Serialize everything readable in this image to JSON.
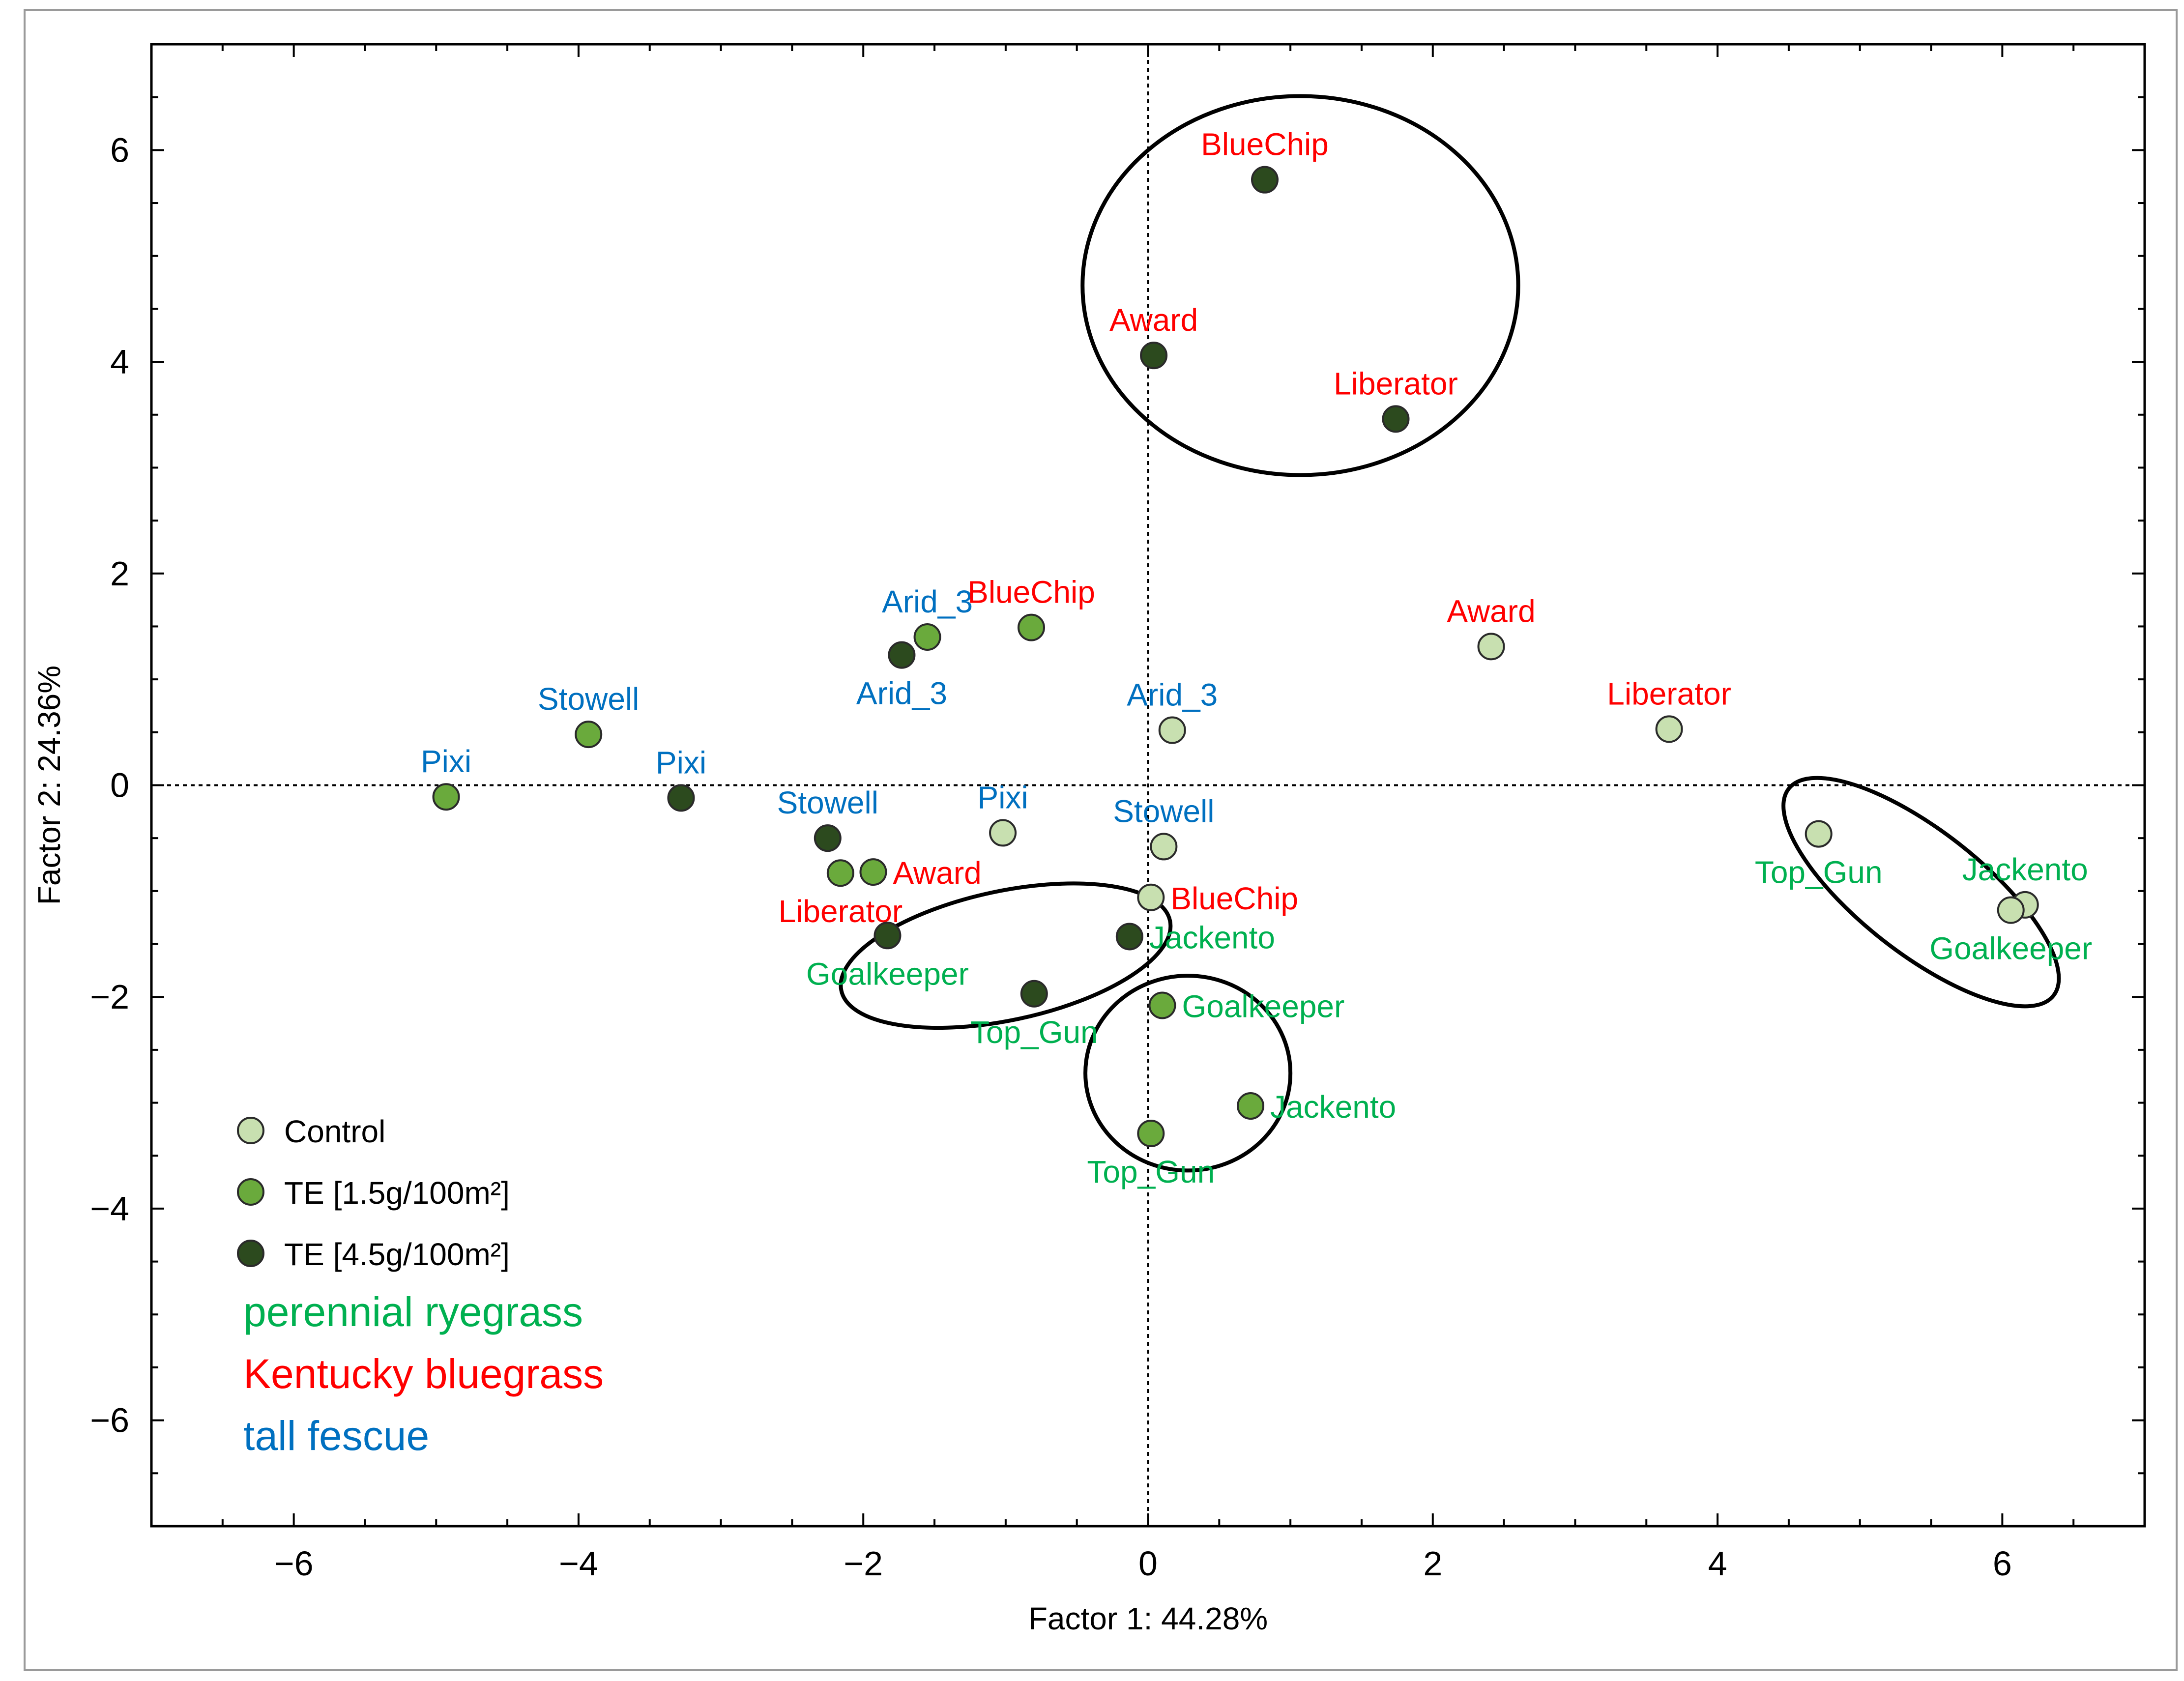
{
  "chart_data": {
    "type": "scatter",
    "xlabel": "Factor 1: 44.28%",
    "ylabel": "Factor 2: 24.36%",
    "xlim": [
      -7,
      7
    ],
    "ylim": [
      -7,
      7
    ],
    "xticks": [
      -6,
      -4,
      -2,
      0,
      2,
      4,
      6
    ],
    "yticks": [
      -6,
      -4,
      -2,
      0,
      2,
      4,
      6
    ],
    "reference_lines": {
      "x": 0,
      "y": 0,
      "style": "dotted"
    },
    "treatments": [
      {
        "key": "control",
        "name": "Control",
        "color": "#c8e0b0"
      },
      {
        "key": "te15",
        "name": "TE [1.5g/100m²]",
        "color": "#6aaa3c"
      },
      {
        "key": "te45",
        "name": "TE [4.5g/100m²]",
        "color": "#2c4a1e"
      }
    ],
    "species": [
      {
        "key": "ryegrass",
        "name": "perennial ryegrass",
        "color": "#00b050"
      },
      {
        "key": "bluegrass",
        "name": "Kentucky bluegrass",
        "color": "#ff0000"
      },
      {
        "key": "fescue",
        "name": "tall fescue",
        "color": "#0070c0"
      }
    ],
    "points": [
      {
        "label": "BlueChip",
        "species": "bluegrass",
        "treatment": "te45",
        "x": 0.82,
        "y": 5.72,
        "label_pos": "above"
      },
      {
        "label": "Award",
        "species": "bluegrass",
        "treatment": "te45",
        "x": 0.04,
        "y": 4.06,
        "label_pos": "above"
      },
      {
        "label": "Liberator",
        "species": "bluegrass",
        "treatment": "te45",
        "x": 1.74,
        "y": 3.46,
        "label_pos": "above"
      },
      {
        "label": "Arid_3",
        "species": "fescue",
        "treatment": "te15",
        "x": -1.55,
        "y": 1.4,
        "label_pos": "above"
      },
      {
        "label": "BlueChip",
        "species": "bluegrass",
        "treatment": "te15",
        "x": -0.82,
        "y": 1.49,
        "label_pos": "above"
      },
      {
        "label": "Arid_3",
        "species": "fescue",
        "treatment": "te45",
        "x": -1.73,
        "y": 1.23,
        "label_pos": "below"
      },
      {
        "label": "Award",
        "species": "bluegrass",
        "treatment": "control",
        "x": 2.41,
        "y": 1.31,
        "label_pos": "above"
      },
      {
        "label": "Arid_3",
        "species": "fescue",
        "treatment": "control",
        "x": 0.17,
        "y": 0.52,
        "label_pos": "above"
      },
      {
        "label": "Liberator",
        "species": "bluegrass",
        "treatment": "control",
        "x": 3.66,
        "y": 0.53,
        "label_pos": "above"
      },
      {
        "label": "Stowell",
        "species": "fescue",
        "treatment": "te15",
        "x": -3.93,
        "y": 0.48,
        "label_pos": "above"
      },
      {
        "label": "Pixi",
        "species": "fescue",
        "treatment": "te15",
        "x": -4.93,
        "y": -0.11,
        "label_pos": "above"
      },
      {
        "label": "Pixi",
        "species": "fescue",
        "treatment": "te45",
        "x": -3.28,
        "y": -0.12,
        "label_pos": "above"
      },
      {
        "label": "Stowell",
        "species": "fescue",
        "treatment": "te45",
        "x": -2.25,
        "y": -0.5,
        "label_pos": "above"
      },
      {
        "label": "Pixi",
        "species": "fescue",
        "treatment": "control",
        "x": -1.02,
        "y": -0.45,
        "label_pos": "above"
      },
      {
        "label": "Stowell",
        "species": "fescue",
        "treatment": "control",
        "x": 0.11,
        "y": -0.58,
        "label_pos": "above"
      },
      {
        "label": "Award",
        "species": "bluegrass",
        "treatment": "te15",
        "x": -1.93,
        "y": -0.82,
        "label_pos": "right"
      },
      {
        "label": "Liberator",
        "species": "bluegrass",
        "treatment": "te15",
        "x": -2.16,
        "y": -0.83,
        "label_pos": "below"
      },
      {
        "label": "BlueChip",
        "species": "bluegrass",
        "treatment": "control",
        "x": 0.02,
        "y": -1.06,
        "label_pos": "right"
      },
      {
        "label": "Goalkeeper",
        "species": "ryegrass",
        "treatment": "te45",
        "x": -1.83,
        "y": -1.42,
        "label_pos": "below"
      },
      {
        "label": "Jackento",
        "species": "ryegrass",
        "treatment": "te45",
        "x": -0.13,
        "y": -1.43,
        "label_pos": "right"
      },
      {
        "label": "Top_Gun",
        "species": "ryegrass",
        "treatment": "te45",
        "x": -0.8,
        "y": -1.97,
        "label_pos": "below"
      },
      {
        "label": "Goalkeeper",
        "species": "ryegrass",
        "treatment": "te15",
        "x": 0.1,
        "y": -2.08,
        "label_pos": "right"
      },
      {
        "label": "Jackento",
        "species": "ryegrass",
        "treatment": "te15",
        "x": 0.72,
        "y": -3.03,
        "label_pos": "right"
      },
      {
        "label": "Top_Gun",
        "species": "ryegrass",
        "treatment": "te15",
        "x": 0.02,
        "y": -3.29,
        "label_pos": "below"
      },
      {
        "label": "Top_Gun",
        "species": "ryegrass",
        "treatment": "control",
        "x": 4.71,
        "y": -0.46,
        "label_pos": "below"
      },
      {
        "label": "Jackento",
        "species": "ryegrass",
        "treatment": "control",
        "x": 6.16,
        "y": -1.13,
        "label_pos": "above"
      },
      {
        "label": "Goalkeeper",
        "species": "ryegrass",
        "treatment": "control",
        "x": 6.06,
        "y": -1.18,
        "label_pos": "below"
      }
    ],
    "ellipses": [
      {
        "name": "cluster-te45-bluegrass",
        "cx": 1.07,
        "cy": 4.72,
        "rx": 1.53,
        "ry": 1.79,
        "angle": 0
      },
      {
        "name": "cluster-te45-ryegrass",
        "cx": -1.0,
        "cy": -1.61,
        "rx": 1.18,
        "ry": 0.61,
        "angle": -12
      },
      {
        "name": "cluster-te15-ryegrass",
        "cx": 0.28,
        "cy": -2.72,
        "rx": 0.72,
        "ry": 0.92,
        "angle": 0
      },
      {
        "name": "cluster-control-ryegrass",
        "cx": 5.43,
        "cy": -1.01,
        "rx": 1.18,
        "ry": 0.58,
        "angle": 38
      }
    ]
  }
}
